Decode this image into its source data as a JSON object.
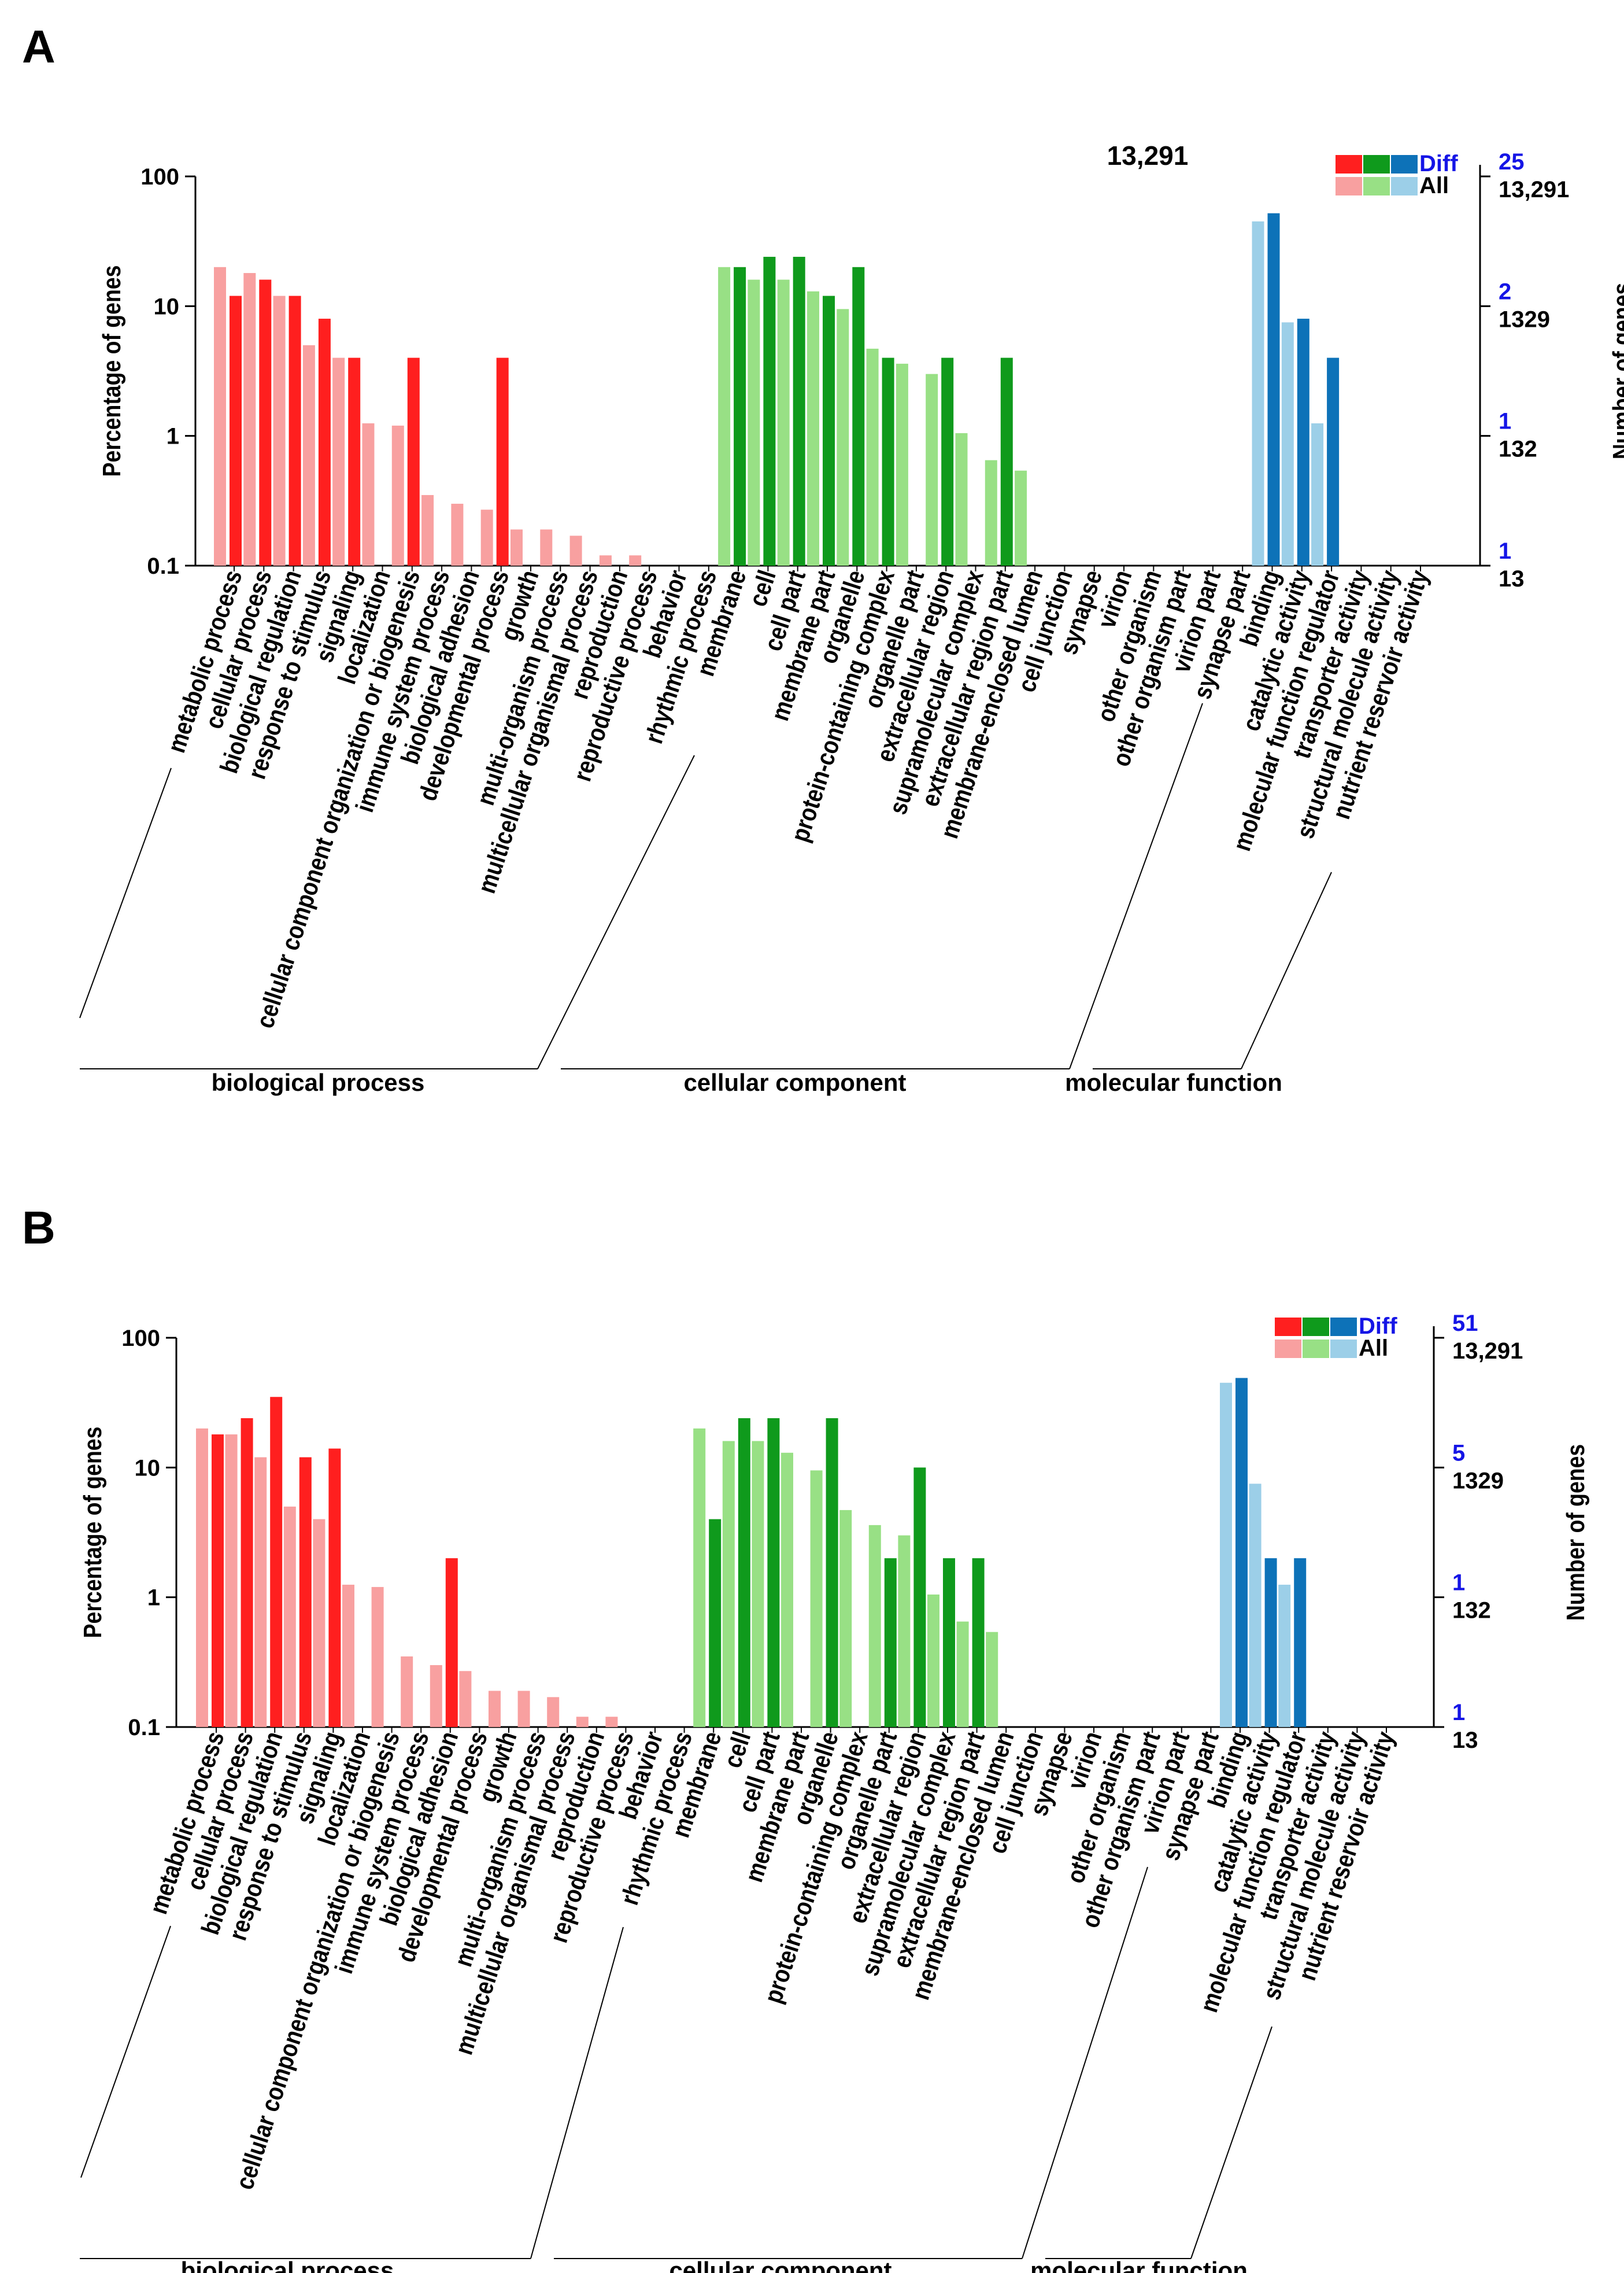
{
  "chart_data": [
    {
      "panel": "A",
      "type": "bar",
      "note": "13,291",
      "ylabel": "Percentage of genes",
      "ylabel_right": "Number of genes",
      "yscale": "log",
      "ylim": [
        0.1,
        100
      ],
      "y_ticks": [
        "100",
        "10",
        "1",
        "0.1"
      ],
      "right_ticks_diff": [
        "25",
        "2",
        "1",
        "1"
      ],
      "right_ticks_all": [
        "13,291",
        "1329",
        "132",
        "13"
      ],
      "legend": [
        "Diff",
        "All"
      ],
      "colors": {
        "biological process": {
          "diff": "#ff1f1f",
          "all": "#f8a0a0"
        },
        "cellular component": {
          "diff": "#0f9a1c",
          "all": "#98e085"
        },
        "molecular function": {
          "diff": "#0d72b8",
          "all": "#9ccfe8"
        }
      },
      "categories": [
        "metabolic process",
        "cellular process",
        "biological regulation",
        "response to stimulus",
        "signaling",
        "localization",
        "cellular component organization or biogenesis",
        "immune system process",
        "biological adhesion",
        "developmental process",
        "growth",
        "multi-organism process",
        "multicellular organismal process",
        "reproduction",
        "reproductive process",
        "behavior",
        "rhythmic process",
        "membrane",
        "cell",
        "cell part",
        "membrane part",
        "organelle",
        "protein-containing complex",
        "organelle part",
        "extracellular region",
        "supramolecular complex",
        "extracellular region part",
        "membrane-enclosed lumen",
        "cell junction",
        "synapse",
        "virion",
        "other organism",
        "other organism part",
        "virion part",
        "synapse part",
        "binding",
        "catalytic activity",
        "molecular function regulator",
        "transporter activity",
        "structural molecule activity",
        "nutrient reservoir activity"
      ],
      "groups": [
        {
          "name": "biological process",
          "count": 17
        },
        {
          "name": "cellular component",
          "count": 18
        },
        {
          "name": "molecular function",
          "count": 6
        }
      ],
      "series": [
        {
          "name": "All",
          "values": [
            20,
            18,
            12,
            5,
            4,
            1.25,
            1.2,
            0.35,
            0.3,
            0.27,
            0.19,
            0.19,
            0.17,
            0.12,
            0.12,
            null,
            null,
            20,
            16,
            16,
            13,
            9.5,
            4.7,
            3.6,
            3,
            1.05,
            0.65,
            0.54,
            null,
            null,
            null,
            null,
            null,
            null,
            null,
            45,
            7.5,
            1.25,
            null,
            null,
            null
          ]
        },
        {
          "name": "Diff",
          "values": [
            12,
            16,
            12,
            8,
            4,
            null,
            4,
            null,
            null,
            4,
            null,
            null,
            null,
            null,
            null,
            null,
            null,
            20,
            24,
            24,
            12,
            20,
            4,
            null,
            4,
            null,
            4,
            null,
            null,
            null,
            null,
            null,
            null,
            null,
            null,
            52,
            8,
            4,
            null,
            null,
            null
          ]
        }
      ]
    },
    {
      "panel": "B",
      "type": "bar",
      "note": "",
      "ylabel": "Percentage of genes",
      "ylabel_right": "Number of genes",
      "yscale": "log",
      "ylim": [
        0.1,
        100
      ],
      "y_ticks": [
        "100",
        "10",
        "1",
        "0.1"
      ],
      "right_ticks_diff": [
        "51",
        "5",
        "1",
        "1"
      ],
      "right_ticks_all": [
        "13,291",
        "1329",
        "132",
        "13"
      ],
      "legend": [
        "Diff",
        "All"
      ],
      "colors": {
        "biological process": {
          "diff": "#ff1f1f",
          "all": "#f8a0a0"
        },
        "cellular component": {
          "diff": "#0f9a1c",
          "all": "#98e085"
        },
        "molecular function": {
          "diff": "#0d72b8",
          "all": "#9ccfe8"
        }
      },
      "categories": [
        "metabolic process",
        "cellular process",
        "biological regulation",
        "response to stimulus",
        "signaling",
        "localization",
        "cellular component organization or biogenesis",
        "immune system process",
        "biological adhesion",
        "developmental process",
        "growth",
        "multi-organism process",
        "multicellular organismal process",
        "reproduction",
        "reproductive process",
        "behavior",
        "rhythmic process",
        "membrane",
        "cell",
        "cell part",
        "membrane part",
        "organelle",
        "protein-containing complex",
        "organelle part",
        "extracellular region",
        "supramolecular complex",
        "extracellular region part",
        "membrane-enclosed lumen",
        "cell junction",
        "synapse",
        "virion",
        "other organism",
        "other organism part",
        "virion part",
        "synapse part",
        "binding",
        "catalytic activity",
        "molecular function regulator",
        "transporter activity",
        "structural molecule activity",
        "nutrient reservoir activity"
      ],
      "groups": [
        {
          "name": "biological process",
          "count": 17
        },
        {
          "name": "cellular component",
          "count": 18
        },
        {
          "name": "molecular function",
          "count": 6
        }
      ],
      "series": [
        {
          "name": "All",
          "values": [
            20,
            18,
            12,
            5,
            4,
            1.25,
            1.2,
            0.35,
            0.3,
            0.27,
            0.19,
            0.19,
            0.17,
            0.12,
            0.12,
            null,
            null,
            20,
            16,
            16,
            13,
            9.5,
            4.7,
            3.6,
            3,
            1.05,
            0.65,
            0.54,
            null,
            null,
            null,
            null,
            null,
            null,
            null,
            45,
            7.5,
            1.25,
            null,
            null,
            null
          ]
        },
        {
          "name": "Diff",
          "values": [
            18,
            24,
            35,
            12,
            14,
            null,
            null,
            null,
            2,
            null,
            null,
            null,
            null,
            null,
            null,
            null,
            null,
            4,
            24,
            24,
            null,
            24,
            null,
            2,
            10,
            2,
            2,
            null,
            null,
            null,
            null,
            null,
            null,
            null,
            null,
            49,
            2,
            2,
            null,
            null,
            null
          ]
        }
      ]
    }
  ]
}
